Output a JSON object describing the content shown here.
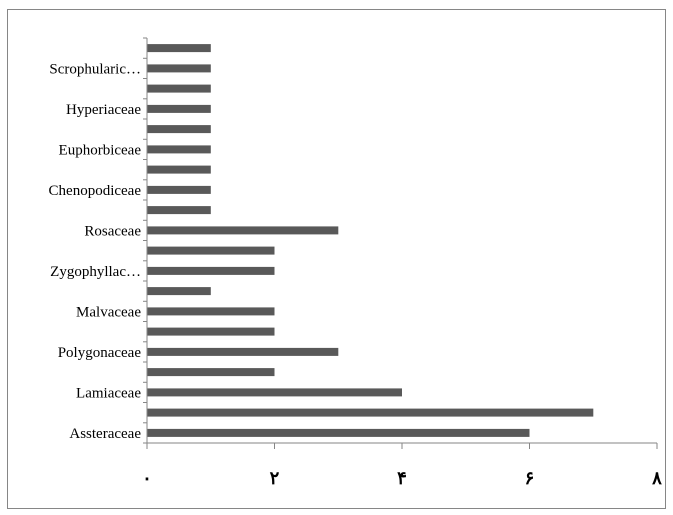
{
  "chart_data": {
    "type": "bar",
    "orientation": "horizontal",
    "title": "",
    "xlabel": "",
    "ylabel": "",
    "xlim": [
      0,
      8
    ],
    "x_ticks": [
      {
        "value": 0,
        "label": "۰"
      },
      {
        "value": 2,
        "label": "۲"
      },
      {
        "value": 4,
        "label": "۴"
      },
      {
        "value": 6,
        "label": "۶"
      },
      {
        "value": 8,
        "label": "۸"
      }
    ],
    "categories": [
      "Assteraceae",
      "",
      "Lamiaceae",
      "",
      "Polygonaceae",
      "",
      "Malvaceae",
      "",
      "Zygophyllac…",
      "",
      "Rosaceae",
      "",
      "Chenopodiceae",
      "",
      "Euphorbiceae",
      "",
      "Hyperiaceae",
      "",
      "Scrophularic…",
      ""
    ],
    "values": [
      6,
      7,
      4,
      2,
      3,
      2,
      2,
      1,
      2,
      2,
      3,
      1,
      1,
      1,
      1,
      1,
      1,
      1,
      1,
      1
    ],
    "grid": false,
    "legend": "none",
    "colors": {
      "bar": "#595959",
      "axis": "#868686",
      "text": "#000000",
      "border": "#868686"
    }
  }
}
